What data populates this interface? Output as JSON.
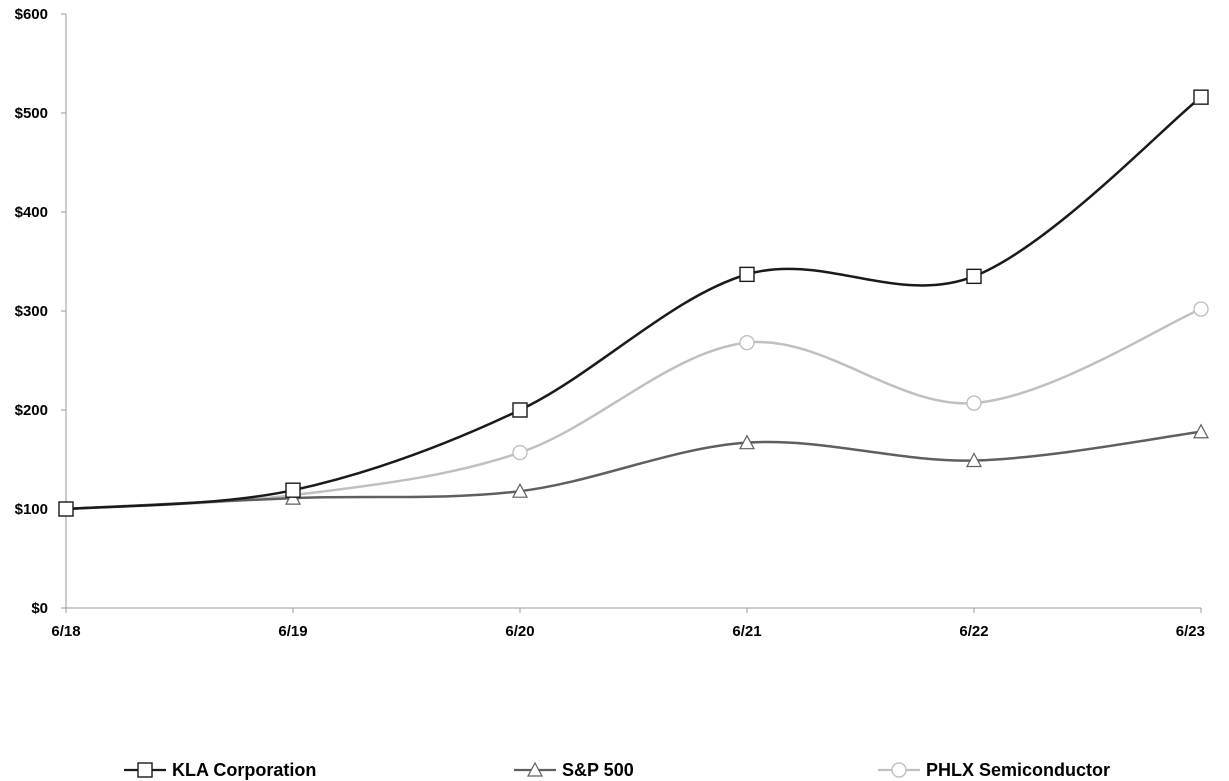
{
  "chart_data": {
    "type": "line",
    "categories": [
      "6/18",
      "6/19",
      "6/20",
      "6/21",
      "6/22",
      "6/23"
    ],
    "y_ticks": [
      "$0",
      "$100",
      "$200",
      "$300",
      "$400",
      "$500",
      "$600"
    ],
    "ylim": [
      0,
      600
    ],
    "grid": false,
    "legend_position": "bottom",
    "series": [
      {
        "name": "KLA Corporation",
        "values": [
          100,
          119,
          200,
          337,
          335,
          516
        ],
        "color": "#1a1a1a",
        "marker": "square"
      },
      {
        "name": "S&P 500",
        "values": [
          100,
          111,
          118,
          167,
          149,
          178
        ],
        "color": "#5f5f5f",
        "marker": "triangle"
      },
      {
        "name": "PHLX Semiconductor",
        "values": [
          100,
          114,
          157,
          268,
          207,
          302
        ],
        "color": "#c0c0c0",
        "marker": "circle"
      }
    ]
  }
}
